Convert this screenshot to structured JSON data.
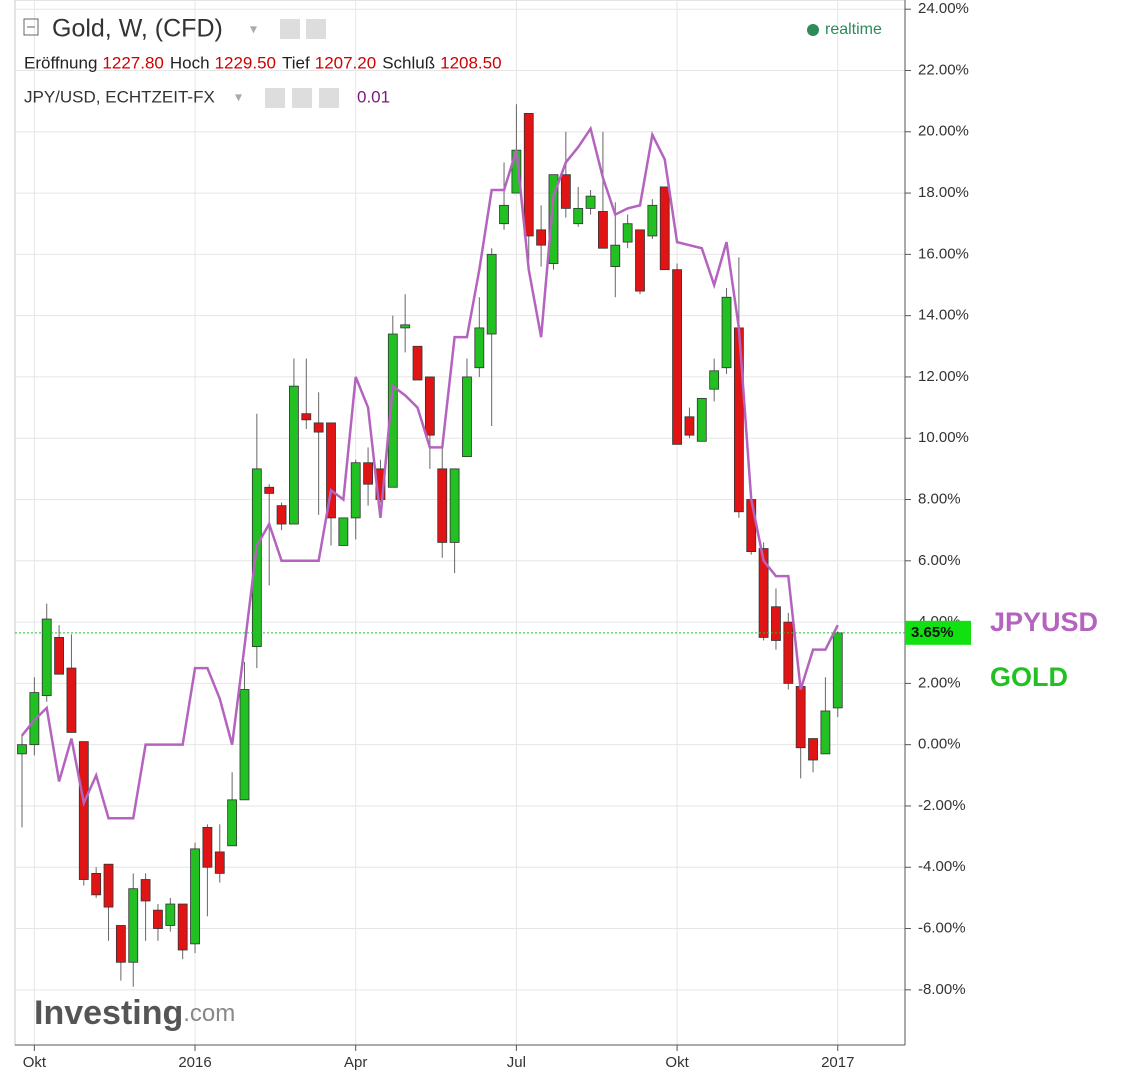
{
  "chart_data": {
    "type": "candlestick",
    "title": "Gold, W, (CFD)",
    "status": "realtime",
    "ohlc_labels": [
      {
        "name": "Eröffnung",
        "value": "1227.80"
      },
      {
        "name": "Hoch",
        "value": "1229.50"
      },
      {
        "name": "Tief",
        "value": "1207.20"
      },
      {
        "name": "Schluß",
        "value": "1208.50"
      }
    ],
    "overlay_label": "JPY/USD, ECHTZEIT-FX",
    "overlay_value": "0.01",
    "watermark": [
      "Investing",
      ".com"
    ],
    "last_price": {
      "value": 3.65,
      "label": "3.65%"
    },
    "categories": [
      null,
      "Okt",
      null,
      null,
      null,
      null,
      null,
      null,
      null,
      null,
      null,
      null,
      null,
      null,
      "2016",
      null,
      null,
      null,
      null,
      null,
      null,
      null,
      null,
      null,
      null,
      null,
      null,
      "Apr",
      null,
      null,
      null,
      null,
      null,
      null,
      null,
      null,
      null,
      null,
      null,
      null,
      "Jul",
      null,
      null,
      null,
      null,
      null,
      null,
      null,
      null,
      null,
      null,
      null,
      null,
      "Okt",
      null,
      null,
      null,
      null,
      null,
      null,
      null,
      null,
      null,
      null,
      null,
      null,
      "2017"
    ],
    "series": [
      {
        "name": "GOLD",
        "up_color": "#22c022",
        "down_color": "#e01414",
        "open": [
          -0.3,
          0.0,
          1.6,
          3.5,
          2.5,
          0.1,
          -4.2,
          -3.9,
          -5.9,
          -7.1,
          -4.4,
          -5.4,
          -5.9,
          -5.2,
          -6.5,
          -2.7,
          -3.5,
          -3.3,
          -1.8,
          3.2,
          8.4,
          7.8,
          7.2,
          10.8,
          10.5,
          10.5,
          6.5,
          7.4,
          9.2,
          9.0,
          8.4,
          13.6,
          13.0,
          12.0,
          9.0,
          6.6,
          9.4,
          12.3,
          13.4,
          17.0,
          18.0,
          20.6,
          16.8,
          15.7,
          18.6,
          17.0,
          17.5,
          17.4,
          15.6,
          16.4,
          16.8,
          16.6,
          18.2,
          15.5,
          10.7,
          9.9,
          11.6,
          12.3,
          13.6,
          8.0,
          6.4,
          4.5,
          4.0,
          1.9,
          0.2,
          -0.3,
          1.2
        ],
        "high": [
          0.35,
          2.2,
          4.6,
          3.9,
          3.6,
          0.1,
          -4.0,
          -3.9,
          -5.9,
          -4.2,
          -4.2,
          -5.2,
          -5.0,
          -5.2,
          -3.2,
          -2.6,
          -2.6,
          -0.9,
          2.7,
          10.8,
          8.5,
          7.9,
          12.6,
          12.6,
          11.5,
          10.5,
          7.4,
          9.3,
          9.7,
          9.3,
          14.0,
          14.7,
          13.0,
          12.0,
          9.8,
          9.0,
          12.6,
          14.6,
          16.2,
          19.0,
          20.9,
          20.6,
          17.6,
          18.6,
          20.0,
          18.2,
          18.1,
          20.0,
          17.7,
          17.3,
          16.8,
          17.8,
          18.2,
          15.7,
          11.0,
          11.3,
          12.6,
          14.9,
          15.9,
          8.0,
          6.6,
          5.1,
          4.3,
          1.9,
          0.2,
          2.2,
          3.7
        ],
        "low": [
          -2.7,
          -0.35,
          1.4,
          2.3,
          0.4,
          -4.6,
          -5.0,
          -6.4,
          -7.7,
          -7.9,
          -6.4,
          -6.4,
          -6.1,
          -7.0,
          -6.8,
          -5.6,
          -4.5,
          -3.3,
          -1.8,
          2.5,
          5.2,
          7.0,
          7.2,
          10.3,
          7.5,
          6.5,
          6.5,
          6.7,
          7.8,
          7.9,
          8.4,
          12.8,
          11.9,
          9.0,
          6.1,
          5.6,
          9.4,
          12.0,
          10.4,
          16.8,
          18.0,
          15.8,
          15.6,
          15.5,
          17.2,
          16.9,
          17.3,
          16.2,
          14.6,
          16.2,
          14.7,
          16.5,
          15.5,
          9.8,
          10.0,
          9.9,
          11.2,
          12.1,
          7.4,
          6.2,
          3.4,
          3.1,
          1.8,
          -1.1,
          -0.9,
          -0.3,
          0.9
        ],
        "close": [
          0.0,
          1.7,
          4.1,
          2.3,
          0.4,
          -4.4,
          -4.9,
          -5.3,
          -7.1,
          -4.7,
          -5.1,
          -6.0,
          -5.2,
          -6.7,
          -3.4,
          -4.0,
          -4.2,
          -1.8,
          1.8,
          9.0,
          8.2,
          7.2,
          11.7,
          10.6,
          10.2,
          7.4,
          7.4,
          9.2,
          8.5,
          8.0,
          13.4,
          13.7,
          11.9,
          10.1,
          6.6,
          9.0,
          12.0,
          13.6,
          16.0,
          17.6,
          19.4,
          16.6,
          16.3,
          18.6,
          17.5,
          17.5,
          17.9,
          16.2,
          16.3,
          17.0,
          14.8,
          17.6,
          15.5,
          9.8,
          10.1,
          11.3,
          12.2,
          14.6,
          7.6,
          6.3,
          3.5,
          3.4,
          2.0,
          -0.1,
          -0.5,
          1.1,
          3.65
        ]
      },
      {
        "name": "JPYUSD",
        "color": "#b463be",
        "values": [
          0.3,
          0.8,
          1.2,
          -1.2,
          0.2,
          -1.9,
          -1.0,
          -2.4,
          -2.4,
          -2.4,
          0.0,
          0.0,
          0.0,
          0.0,
          2.5,
          2.5,
          1.5,
          0.0,
          3.2,
          6.5,
          7.2,
          6.0,
          6.0,
          6.0,
          6.0,
          8.3,
          8.0,
          12.0,
          11.0,
          7.4,
          11.7,
          11.4,
          11.0,
          9.7,
          9.7,
          13.3,
          13.3,
          15.5,
          18.1,
          18.1,
          19.4,
          15.5,
          13.3,
          17.9,
          19.0,
          19.5,
          20.1,
          18.5,
          17.3,
          17.5,
          17.6,
          19.9,
          19.1,
          16.4,
          16.3,
          16.2,
          15.0,
          16.4,
          13.6,
          8.0,
          6.0,
          5.5,
          5.5,
          1.8,
          3.1,
          3.1,
          3.9
        ]
      }
    ],
    "ylim": [
      -9.8,
      24.3
    ],
    "yticks": [
      {
        "value": -8,
        "label": "-8.00%"
      },
      {
        "value": -6,
        "label": "-6.00%"
      },
      {
        "value": -4,
        "label": "-4.00%"
      },
      {
        "value": -2,
        "label": "-2.00%"
      },
      {
        "value": 0,
        "label": "0.00%"
      },
      {
        "value": 2,
        "label": "2.00%"
      },
      {
        "value": 4,
        "label": "4.00%"
      },
      {
        "value": 6,
        "label": "6.00%"
      },
      {
        "value": 8,
        "label": "8.00%"
      },
      {
        "value": 10,
        "label": "10.00%"
      },
      {
        "value": 12,
        "label": "12.00%"
      },
      {
        "value": 14,
        "label": "14.00%"
      },
      {
        "value": 16,
        "label": "16.00%"
      },
      {
        "value": 18,
        "label": "18.00%"
      },
      {
        "value": 20,
        "label": "20.00%"
      },
      {
        "value": 22,
        "label": "22.00%"
      },
      {
        "value": 24,
        "label": "24.00%"
      }
    ],
    "grid": true
  }
}
